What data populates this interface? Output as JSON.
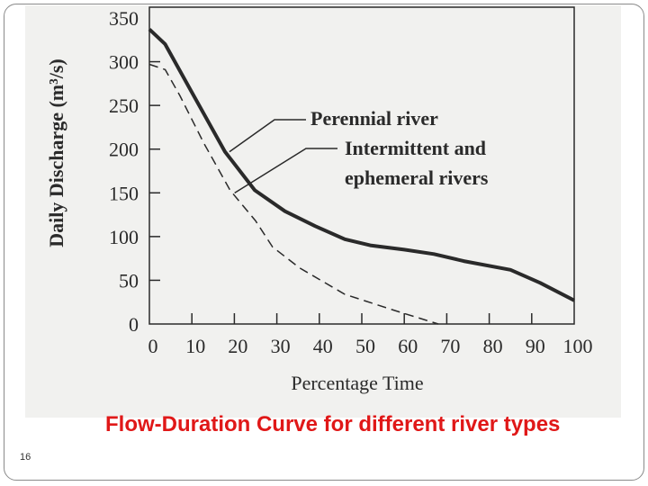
{
  "slide": {
    "number": "16",
    "title": "Flow-Duration Curve for different river types"
  },
  "colors": {
    "title": "#e01818",
    "line": "#2a2a2a"
  },
  "chart_data": {
    "type": "line",
    "title": "",
    "xlabel": "Percentage Time",
    "ylabel": "Daily Discharge (m³/s)",
    "xlim": [
      0,
      100
    ],
    "ylim": [
      0,
      350
    ],
    "xticks": [
      0,
      10,
      20,
      30,
      40,
      50,
      60,
      70,
      80,
      90,
      100
    ],
    "yticks": [
      0,
      50,
      100,
      150,
      200,
      250,
      300,
      350
    ],
    "grid": false,
    "series": [
      {
        "name": "Perennial river",
        "style": "solid",
        "x": [
          0,
          3.7,
          10,
          17.8,
          24.8,
          31.9,
          39,
          46,
          52,
          60,
          67,
          74,
          85,
          92,
          100
        ],
        "y": [
          337,
          320,
          265,
          197,
          153,
          129,
          112,
          97,
          90,
          85,
          80,
          72,
          62,
          47,
          27
        ]
      },
      {
        "name": "Intermittent and ephemeral rivers",
        "style": "dashed",
        "x": [
          0,
          3.7,
          7.2,
          12.8,
          19,
          25,
          29,
          35.4,
          46,
          58,
          68
        ],
        "y": [
          297,
          291,
          261,
          207,
          153,
          118,
          88,
          64,
          34,
          15,
          0
        ]
      }
    ],
    "annotations": [
      {
        "text": "Perennial river",
        "points_to": [
          18,
          197
        ]
      },
      {
        "text_lines": [
          "Intermittent and",
          "ephemeral rivers"
        ],
        "points_to": [
          19,
          153
        ]
      }
    ]
  }
}
